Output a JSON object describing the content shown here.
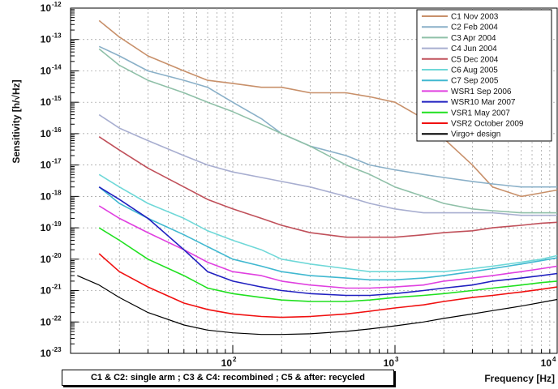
{
  "chart_data": {
    "type": "line",
    "title": "",
    "xlabel": "Frequency [Hz]",
    "ylabel": "Sensitivity [h/√Hz]",
    "xscale": "log",
    "yscale": "log",
    "xlim": [
      10,
      10000
    ],
    "ylim": [
      1e-23,
      1e-12
    ],
    "grid": true,
    "legend_position": "top-right",
    "x_tick_labels": [
      {
        "value": 100,
        "base": "10",
        "exp": "2"
      },
      {
        "value": 1000,
        "base": "10",
        "exp": "3"
      },
      {
        "value": 10000,
        "base": "10",
        "exp": "4"
      }
    ],
    "y_tick_labels": [
      {
        "value": 1e-12,
        "base": "10",
        "exp": "-12"
      },
      {
        "value": 1e-13,
        "base": "10",
        "exp": "-13"
      },
      {
        "value": 1e-14,
        "base": "10",
        "exp": "-14"
      },
      {
        "value": 1e-15,
        "base": "10",
        "exp": "-15"
      },
      {
        "value": 1e-16,
        "base": "10",
        "exp": "-16"
      },
      {
        "value": 1e-17,
        "base": "10",
        "exp": "-17"
      },
      {
        "value": 1e-18,
        "base": "10",
        "exp": "-18"
      },
      {
        "value": 1e-19,
        "base": "10",
        "exp": "-19"
      },
      {
        "value": 1e-20,
        "base": "10",
        "exp": "-20"
      },
      {
        "value": 1e-21,
        "base": "10",
        "exp": "-21"
      },
      {
        "value": 1e-22,
        "base": "10",
        "exp": "-22"
      },
      {
        "value": 1e-23,
        "base": "10",
        "exp": "-23"
      }
    ],
    "series": [
      {
        "name": "C1 Nov 2003",
        "color": "#c8906a",
        "x": [
          15,
          20,
          30,
          50,
          70,
          100,
          150,
          200,
          300,
          500,
          700,
          1000,
          1500,
          2000,
          3000,
          4000,
          6000,
          8000,
          10000
        ],
        "y": [
          4e-13,
          1.2e-13,
          3e-14,
          1e-14,
          5e-15,
          4e-15,
          3e-15,
          3e-15,
          2e-15,
          2e-15,
          1.5e-15,
          1e-15,
          3e-16,
          7e-17,
          1e-17,
          2e-18,
          1e-18,
          1.3e-18,
          1.6e-18
        ]
      },
      {
        "name": "C2 Feb 2004",
        "color": "#8ab0c8",
        "x": [
          15,
          20,
          30,
          50,
          70,
          100,
          150,
          200,
          300,
          500,
          700,
          1000,
          1500,
          2000,
          3000,
          4000,
          6000,
          8000,
          10000
        ],
        "y": [
          6e-14,
          3e-14,
          1e-14,
          5e-15,
          3e-15,
          1e-15,
          3e-16,
          1e-16,
          4e-17,
          2e-17,
          1e-17,
          7e-18,
          5e-18,
          4e-18,
          3e-18,
          2.5e-18,
          2e-18,
          2e-18,
          2e-18
        ]
      },
      {
        "name": "C3 Apr 2004",
        "color": "#8fc0a8",
        "x": [
          15,
          20,
          30,
          50,
          70,
          100,
          150,
          200,
          300,
          500,
          700,
          1000,
          1500,
          2000,
          3000,
          4000,
          6000,
          8000,
          10000
        ],
        "y": [
          5e-14,
          1.5e-14,
          5e-15,
          2e-15,
          1e-15,
          5e-16,
          2e-16,
          1e-16,
          4e-17,
          1e-17,
          5e-18,
          2e-18,
          1e-18,
          6e-19,
          4e-19,
          3.5e-19,
          3e-19,
          3e-19,
          3e-19
        ]
      },
      {
        "name": "C4 Jun 2004",
        "color": "#a8aed0",
        "x": [
          15,
          20,
          30,
          50,
          70,
          100,
          150,
          200,
          300,
          500,
          700,
          1000,
          1500,
          2000,
          3000,
          4000,
          6000,
          8000,
          10000
        ],
        "y": [
          4e-16,
          1.5e-16,
          6e-17,
          2e-17,
          1e-17,
          6e-18,
          4e-18,
          3e-18,
          2e-18,
          1e-18,
          6e-19,
          4e-19,
          3e-19,
          3e-19,
          3e-19,
          3e-19,
          2.5e-19,
          2.5e-19,
          2.5e-19
        ]
      },
      {
        "name": "C5 Dec 2004",
        "color": "#c0505a",
        "x": [
          15,
          20,
          30,
          50,
          70,
          100,
          150,
          200,
          300,
          500,
          700,
          1000,
          1500,
          2000,
          3000,
          4000,
          6000,
          8000,
          10000
        ],
        "y": [
          8e-17,
          3e-17,
          8e-18,
          2e-18,
          8e-19,
          4e-19,
          2e-19,
          1.2e-19,
          7e-20,
          5e-20,
          5e-20,
          5e-20,
          6e-20,
          7e-20,
          8e-20,
          1e-19,
          1.2e-19,
          1.4e-19,
          1.5e-19
        ]
      },
      {
        "name": "C6 Aug 2005",
        "color": "#6fd8d8",
        "x": [
          15,
          20,
          30,
          50,
          70,
          100,
          150,
          200,
          300,
          500,
          700,
          1000,
          1500,
          2000,
          3000,
          4000,
          6000,
          8000,
          10000
        ],
        "y": [
          5e-18,
          2e-18,
          6e-19,
          2e-19,
          8e-20,
          4e-20,
          2e-20,
          1e-20,
          7e-21,
          5e-21,
          4e-21,
          4e-21,
          4e-21,
          4e-21,
          5e-21,
          6e-21,
          8e-21,
          1e-20,
          1.3e-20
        ]
      },
      {
        "name": "C7 Sep 2005",
        "color": "#40b8d0",
        "x": [
          15,
          20,
          30,
          50,
          70,
          100,
          150,
          200,
          300,
          500,
          700,
          1000,
          1500,
          2000,
          3000,
          4000,
          6000,
          8000,
          10000
        ],
        "y": [
          2e-18,
          6e-19,
          2e-19,
          6e-20,
          2.5e-20,
          1e-20,
          6e-21,
          4e-21,
          3e-21,
          2.5e-21,
          2.2e-21,
          2.2e-21,
          2.5e-21,
          3e-21,
          4e-21,
          5e-21,
          7e-21,
          9e-21,
          1.1e-20
        ]
      },
      {
        "name": "WSR1 Sep 2006",
        "color": "#e040e0",
        "x": [
          15,
          20,
          30,
          50,
          70,
          100,
          150,
          200,
          300,
          500,
          700,
          1000,
          1500,
          2000,
          3000,
          4000,
          6000,
          8000,
          10000
        ],
        "y": [
          5e-19,
          2e-19,
          7e-20,
          2e-20,
          8e-21,
          4e-21,
          3e-21,
          2e-21,
          1.5e-21,
          1.2e-21,
          1.2e-21,
          1.3e-21,
          1.5e-21,
          2e-21,
          2.5e-21,
          3e-21,
          4e-21,
          5e-21,
          6e-21
        ]
      },
      {
        "name": "WSR10 Mar 2007",
        "color": "#2020c0",
        "x": [
          15,
          20,
          30,
          50,
          70,
          100,
          150,
          200,
          300,
          500,
          700,
          1000,
          1500,
          2000,
          3000,
          4000,
          6000,
          8000,
          10000
        ],
        "y": [
          2e-18,
          8e-19,
          2e-19,
          2e-20,
          4e-21,
          2e-21,
          1.3e-21,
          1e-21,
          8e-22,
          7e-22,
          7e-22,
          8e-22,
          1e-21,
          1.2e-21,
          1.5e-21,
          2e-21,
          2.5e-21,
          3e-21,
          3.5e-21
        ]
      },
      {
        "name": "VSR1 May 2007",
        "color": "#20e020",
        "x": [
          15,
          20,
          30,
          50,
          70,
          100,
          150,
          200,
          300,
          500,
          700,
          1000,
          1500,
          2000,
          3000,
          4000,
          6000,
          8000,
          10000
        ],
        "y": [
          1e-19,
          4e-20,
          1e-20,
          3e-21,
          1.2e-21,
          8e-22,
          6e-22,
          5e-22,
          4.5e-22,
          4.5e-22,
          5e-22,
          6e-22,
          7e-22,
          8e-22,
          1e-21,
          1.2e-21,
          1.5e-21,
          1.8e-21,
          2e-21
        ]
      },
      {
        "name": "VSR2 October 2009",
        "color": "#f01010",
        "x": [
          15,
          20,
          30,
          50,
          70,
          100,
          150,
          200,
          300,
          500,
          700,
          1000,
          1500,
          2000,
          3000,
          4000,
          6000,
          8000,
          10000
        ],
        "y": [
          1.5e-20,
          4e-21,
          1.3e-21,
          4e-22,
          2.5e-22,
          1.8e-22,
          1.5e-22,
          1.4e-22,
          1.5e-22,
          1.8e-22,
          2.2e-22,
          2.8e-22,
          3.5e-22,
          4.5e-22,
          6e-22,
          7e-22,
          9e-22,
          1.1e-21,
          1.3e-21
        ]
      },
      {
        "name": "Virgo+ design",
        "color": "#000000",
        "x": [
          11,
          15,
          20,
          30,
          50,
          70,
          100,
          150,
          200,
          300,
          500,
          700,
          1000,
          1500,
          2000,
          3000,
          4000,
          6000,
          8000,
          10000
        ],
        "y": [
          3e-21,
          1.5e-21,
          6e-22,
          2e-22,
          8e-23,
          5.5e-23,
          4.5e-23,
          4e-23,
          4e-23,
          4.2e-23,
          5e-23,
          6e-23,
          7.5e-23,
          1e-22,
          1.3e-22,
          1.8e-22,
          2.3e-22,
          3.2e-22,
          4.2e-22,
          5.2e-22
        ]
      }
    ],
    "annotations": [
      "C1 & C2: single arm ; C3 & C4: recombined ; C5 & after: recycled"
    ]
  }
}
